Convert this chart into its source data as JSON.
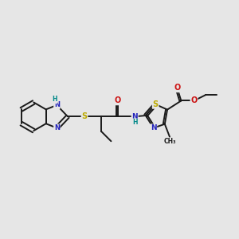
{
  "bg_color": "#e6e6e6",
  "bond_color": "#1a1a1a",
  "N_color": "#2222bb",
  "S_color": "#bbaa00",
  "O_color": "#cc1111",
  "H_color": "#008888",
  "figsize": [
    3.0,
    3.0
  ],
  "dpi": 100,
  "xlim": [
    0,
    12
  ],
  "ylim": [
    0,
    12
  ]
}
